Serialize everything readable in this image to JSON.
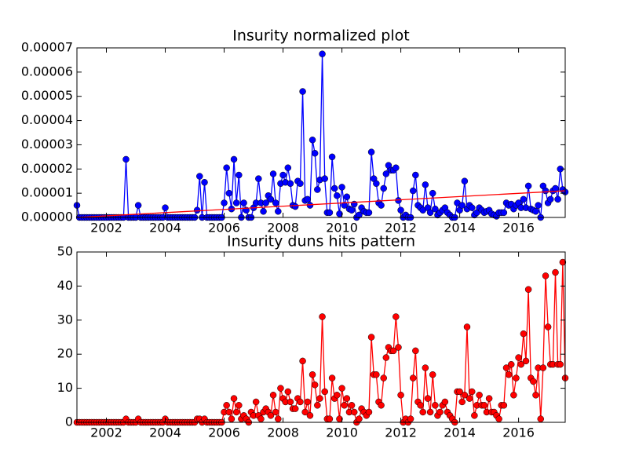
{
  "chart_data": [
    {
      "type": "line",
      "title": "Insurity normalized plot",
      "x": [
        2001,
        2001.083,
        2001.167,
        2001.25,
        2001.333,
        2001.417,
        2001.5,
        2001.583,
        2001.667,
        2001.75,
        2001.833,
        2001.917,
        2002,
        2002.083,
        2002.167,
        2002.25,
        2002.333,
        2002.417,
        2002.5,
        2002.583,
        2002.667,
        2002.75,
        2002.833,
        2002.917,
        2003,
        2003.083,
        2003.167,
        2003.25,
        2003.333,
        2003.417,
        2003.5,
        2003.583,
        2003.667,
        2003.75,
        2003.833,
        2003.917,
        2004,
        2004.083,
        2004.167,
        2004.25,
        2004.333,
        2004.417,
        2004.5,
        2004.583,
        2004.667,
        2004.75,
        2004.833,
        2004.917,
        2005,
        2005.083,
        2005.167,
        2005.25,
        2005.333,
        2005.417,
        2005.5,
        2005.583,
        2005.667,
        2005.75,
        2005.833,
        2005.917,
        2006,
        2006.083,
        2006.167,
        2006.25,
        2006.333,
        2006.417,
        2006.5,
        2006.583,
        2006.667,
        2006.75,
        2006.833,
        2006.917,
        2007,
        2007.083,
        2007.167,
        2007.25,
        2007.333,
        2007.417,
        2007.5,
        2007.583,
        2007.667,
        2007.75,
        2007.833,
        2007.917,
        2008,
        2008.083,
        2008.167,
        2008.25,
        2008.333,
        2008.417,
        2008.5,
        2008.583,
        2008.667,
        2008.75,
        2008.833,
        2008.917,
        2009,
        2009.083,
        2009.167,
        2009.25,
        2009.333,
        2009.417,
        2009.5,
        2009.583,
        2009.667,
        2009.75,
        2009.833,
        2009.917,
        2010,
        2010.083,
        2010.167,
        2010.25,
        2010.333,
        2010.417,
        2010.5,
        2010.583,
        2010.667,
        2010.75,
        2010.833,
        2010.917,
        2011,
        2011.083,
        2011.167,
        2011.25,
        2011.333,
        2011.417,
        2011.5,
        2011.583,
        2011.667,
        2011.75,
        2011.833,
        2011.917,
        2012,
        2012.083,
        2012.167,
        2012.25,
        2012.333,
        2012.417,
        2012.5,
        2012.583,
        2012.667,
        2012.75,
        2012.833,
        2012.917,
        2013,
        2013.083,
        2013.167,
        2013.25,
        2013.333,
        2013.417,
        2013.5,
        2013.583,
        2013.667,
        2013.75,
        2013.833,
        2013.917,
        2014,
        2014.083,
        2014.167,
        2014.25,
        2014.333,
        2014.417,
        2014.5,
        2014.583,
        2014.667,
        2014.75,
        2014.833,
        2014.917,
        2015,
        2015.083,
        2015.167,
        2015.25,
        2015.333,
        2015.417,
        2015.5,
        2015.583,
        2015.667,
        2015.75,
        2015.833,
        2015.917,
        2016,
        2016.083,
        2016.167,
        2016.25,
        2016.333,
        2016.417,
        2016.5,
        2016.583,
        2016.667,
        2016.75,
        2016.833,
        2016.917,
        2017,
        2017.083,
        2017.167,
        2017.25,
        2017.333,
        2017.417,
        2017.5,
        2017.583
      ],
      "series": [
        {
          "color": "#0000ff",
          "marker": true,
          "values": [
            5e-06,
            0,
            0,
            0,
            0,
            0,
            0,
            0,
            0,
            0,
            0,
            0,
            0,
            0,
            0,
            0,
            0,
            0,
            0,
            0,
            2.4e-05,
            0,
            0,
            0,
            0,
            5e-06,
            0,
            0,
            0,
            0,
            0,
            0,
            0,
            0,
            0,
            0,
            4e-06,
            0,
            0,
            0,
            0,
            0,
            0,
            0,
            0,
            0,
            0,
            0,
            0,
            3e-06,
            1.7e-05,
            0,
            1.45e-05,
            0,
            0,
            0,
            0,
            0,
            0,
            0,
            6e-06,
            2.05e-05,
            1e-05,
            3.5e-06,
            2.4e-05,
            6e-06,
            1.75e-05,
            0,
            6e-06,
            3e-06,
            0,
            0,
            4e-06,
            6e-06,
            1.6e-05,
            6e-06,
            2.5e-06,
            6e-06,
            9e-06,
            7.5e-06,
            1.8e-05,
            6e-06,
            2.5e-06,
            1.4e-05,
            1.75e-05,
            1.45e-05,
            2.05e-05,
            1.4e-05,
            5e-06,
            4.5e-06,
            1.5e-05,
            1.4e-05,
            5.2e-05,
            7e-06,
            7.5e-06,
            5e-06,
            3.2e-05,
            2.65e-05,
            1.15e-05,
            1.55e-05,
            6.75e-05,
            1.6e-05,
            2e-06,
            2e-06,
            2.5e-05,
            1.2e-05,
            9e-06,
            1.5e-06,
            1.25e-05,
            5e-06,
            8.5e-06,
            3.5e-06,
            3e-06,
            5.5e-06,
            0,
            1e-06,
            4e-06,
            2.5e-06,
            2e-06,
            2e-06,
            2.7e-05,
            1.6e-05,
            1.4e-05,
            6e-06,
            5e-06,
            1.2e-05,
            1.8e-05,
            2.15e-05,
            1.95e-05,
            1.95e-05,
            2.05e-05,
            7e-06,
            3e-06,
            0,
            1e-06,
            0,
            0,
            1.1e-05,
            1.75e-05,
            5e-06,
            4e-06,
            3e-06,
            1.35e-05,
            4e-06,
            2e-06,
            1e-05,
            3.5e-06,
            1e-06,
            2e-06,
            3e-06,
            4e-06,
            2e-06,
            1e-06,
            0,
            0,
            6e-06,
            3e-06,
            5e-06,
            1.5e-05,
            3.5e-06,
            5e-06,
            4e-06,
            1e-06,
            2e-06,
            4e-06,
            3e-06,
            2e-06,
            2.5e-06,
            3e-06,
            1.5e-06,
            1e-06,
            5e-07,
            2e-06,
            2e-06,
            2e-06,
            6e-06,
            5e-06,
            5.5e-06,
            3.5e-06,
            5e-06,
            6e-06,
            4e-06,
            7.5e-06,
            4e-06,
            1.3e-05,
            3.5e-06,
            3e-06,
            2.5e-06,
            5e-06,
            0,
            1.3e-05,
            1.1e-05,
            6e-06,
            7.5e-06,
            1.1e-05,
            1.2e-05,
            7.5e-06,
            2e-05,
            1.15e-05,
            1.05e-05
          ]
        },
        {
          "color": "#ff0000",
          "marker": false,
          "x": [
            2001,
            2017.583
          ],
          "values": [
            0,
            1.1e-05
          ]
        }
      ],
      "xlim": [
        2001,
        2017.583
      ],
      "ylim": [
        0,
        7e-05
      ],
      "xticks": [
        2002,
        2004,
        2006,
        2008,
        2010,
        2012,
        2014,
        2016
      ],
      "yticks": [
        {
          "value": 0,
          "label": "0.00000"
        },
        {
          "value": 1e-05,
          "label": "0.00001"
        },
        {
          "value": 2e-05,
          "label": "0.00002"
        },
        {
          "value": 3e-05,
          "label": "0.00003"
        },
        {
          "value": 4e-05,
          "label": "0.00004"
        },
        {
          "value": 5e-05,
          "label": "0.00005"
        },
        {
          "value": 6e-05,
          "label": "0.00006"
        },
        {
          "value": 7e-05,
          "label": "0.00007"
        }
      ],
      "grid": false
    },
    {
      "type": "line",
      "title": "Insurity duns hits pattern",
      "x": [
        2001,
        2001.083,
        2001.167,
        2001.25,
        2001.333,
        2001.417,
        2001.5,
        2001.583,
        2001.667,
        2001.75,
        2001.833,
        2001.917,
        2002,
        2002.083,
        2002.167,
        2002.25,
        2002.333,
        2002.417,
        2002.5,
        2002.583,
        2002.667,
        2002.75,
        2002.833,
        2002.917,
        2003,
        2003.083,
        2003.167,
        2003.25,
        2003.333,
        2003.417,
        2003.5,
        2003.583,
        2003.667,
        2003.75,
        2003.833,
        2003.917,
        2004,
        2004.083,
        2004.167,
        2004.25,
        2004.333,
        2004.417,
        2004.5,
        2004.583,
        2004.667,
        2004.75,
        2004.833,
        2004.917,
        2005,
        2005.083,
        2005.167,
        2005.25,
        2005.333,
        2005.417,
        2005.5,
        2005.583,
        2005.667,
        2005.75,
        2005.833,
        2005.917,
        2006,
        2006.083,
        2006.167,
        2006.25,
        2006.333,
        2006.417,
        2006.5,
        2006.583,
        2006.667,
        2006.75,
        2006.833,
        2006.917,
        2007,
        2007.083,
        2007.167,
        2007.25,
        2007.333,
        2007.417,
        2007.5,
        2007.583,
        2007.667,
        2007.75,
        2007.833,
        2007.917,
        2008,
        2008.083,
        2008.167,
        2008.25,
        2008.333,
        2008.417,
        2008.5,
        2008.583,
        2008.667,
        2008.75,
        2008.833,
        2008.917,
        2009,
        2009.083,
        2009.167,
        2009.25,
        2009.333,
        2009.417,
        2009.5,
        2009.583,
        2009.667,
        2009.75,
        2009.833,
        2009.917,
        2010,
        2010.083,
        2010.167,
        2010.25,
        2010.333,
        2010.417,
        2010.5,
        2010.583,
        2010.667,
        2010.75,
        2010.833,
        2010.917,
        2011,
        2011.083,
        2011.167,
        2011.25,
        2011.333,
        2011.417,
        2011.5,
        2011.583,
        2011.667,
        2011.75,
        2011.833,
        2011.917,
        2012,
        2012.083,
        2012.167,
        2012.25,
        2012.333,
        2012.417,
        2012.5,
        2012.583,
        2012.667,
        2012.75,
        2012.833,
        2012.917,
        2013,
        2013.083,
        2013.167,
        2013.25,
        2013.333,
        2013.417,
        2013.5,
        2013.583,
        2013.667,
        2013.75,
        2013.833,
        2013.917,
        2014,
        2014.083,
        2014.167,
        2014.25,
        2014.333,
        2014.417,
        2014.5,
        2014.583,
        2014.667,
        2014.75,
        2014.833,
        2014.917,
        2015,
        2015.083,
        2015.167,
        2015.25,
        2015.333,
        2015.417,
        2015.5,
        2015.583,
        2015.667,
        2015.75,
        2015.833,
        2015.917,
        2016,
        2016.083,
        2016.167,
        2016.25,
        2016.333,
        2016.417,
        2016.5,
        2016.583,
        2016.667,
        2016.75,
        2016.833,
        2016.917,
        2017,
        2017.083,
        2017.167,
        2017.25,
        2017.333,
        2017.417,
        2017.5,
        2017.583
      ],
      "series": [
        {
          "color": "#ff0000",
          "marker": true,
          "values": [
            0,
            0,
            0,
            0,
            0,
            0,
            0,
            0,
            0,
            0,
            0,
            0,
            0,
            0,
            0,
            0,
            0,
            0,
            0,
            0,
            1,
            0,
            0,
            0,
            0,
            1,
            0,
            0,
            0,
            0,
            0,
            0,
            0,
            0,
            0,
            0,
            1,
            0,
            0,
            0,
            0,
            0,
            0,
            0,
            0,
            0,
            0,
            0,
            0,
            1,
            1,
            0,
            1,
            0,
            0,
            0,
            0,
            0,
            0,
            0,
            3,
            5,
            3,
            1,
            7,
            3,
            5,
            1,
            2,
            1,
            0,
            3,
            2,
            6,
            2,
            1,
            3,
            4,
            3,
            2,
            8,
            3,
            1,
            10,
            7,
            6,
            9,
            6,
            4,
            4,
            7,
            6,
            18,
            3,
            6,
            2,
            14,
            11,
            5,
            7,
            31,
            9,
            1,
            1,
            13,
            7,
            8,
            1,
            10,
            5,
            7,
            3,
            5,
            3,
            0,
            1,
            4,
            3,
            2,
            3,
            25,
            14,
            14,
            6,
            5,
            13,
            19,
            22,
            21,
            21,
            31,
            22,
            8,
            0,
            1,
            0,
            1,
            13,
            21,
            6,
            5,
            3,
            16,
            7,
            3,
            14,
            5,
            2,
            3,
            5,
            6,
            3,
            2,
            1,
            0,
            9,
            9,
            6,
            8,
            28,
            7,
            9,
            2,
            5,
            8,
            5,
            5,
            3,
            7,
            3,
            3,
            2,
            1,
            5,
            5,
            16,
            14,
            17,
            8,
            13,
            19,
            17,
            26,
            18,
            39,
            13,
            12,
            8,
            16,
            1,
            16,
            43,
            28,
            17,
            17,
            44,
            17,
            17,
            47,
            13
          ]
        }
      ],
      "xlim": [
        2001,
        2017.583
      ],
      "ylim": [
        0,
        50
      ],
      "xticks": [
        2002,
        2004,
        2006,
        2008,
        2010,
        2012,
        2014,
        2016
      ],
      "yticks": [
        0,
        10,
        20,
        30,
        40,
        50
      ],
      "grid": false
    }
  ]
}
